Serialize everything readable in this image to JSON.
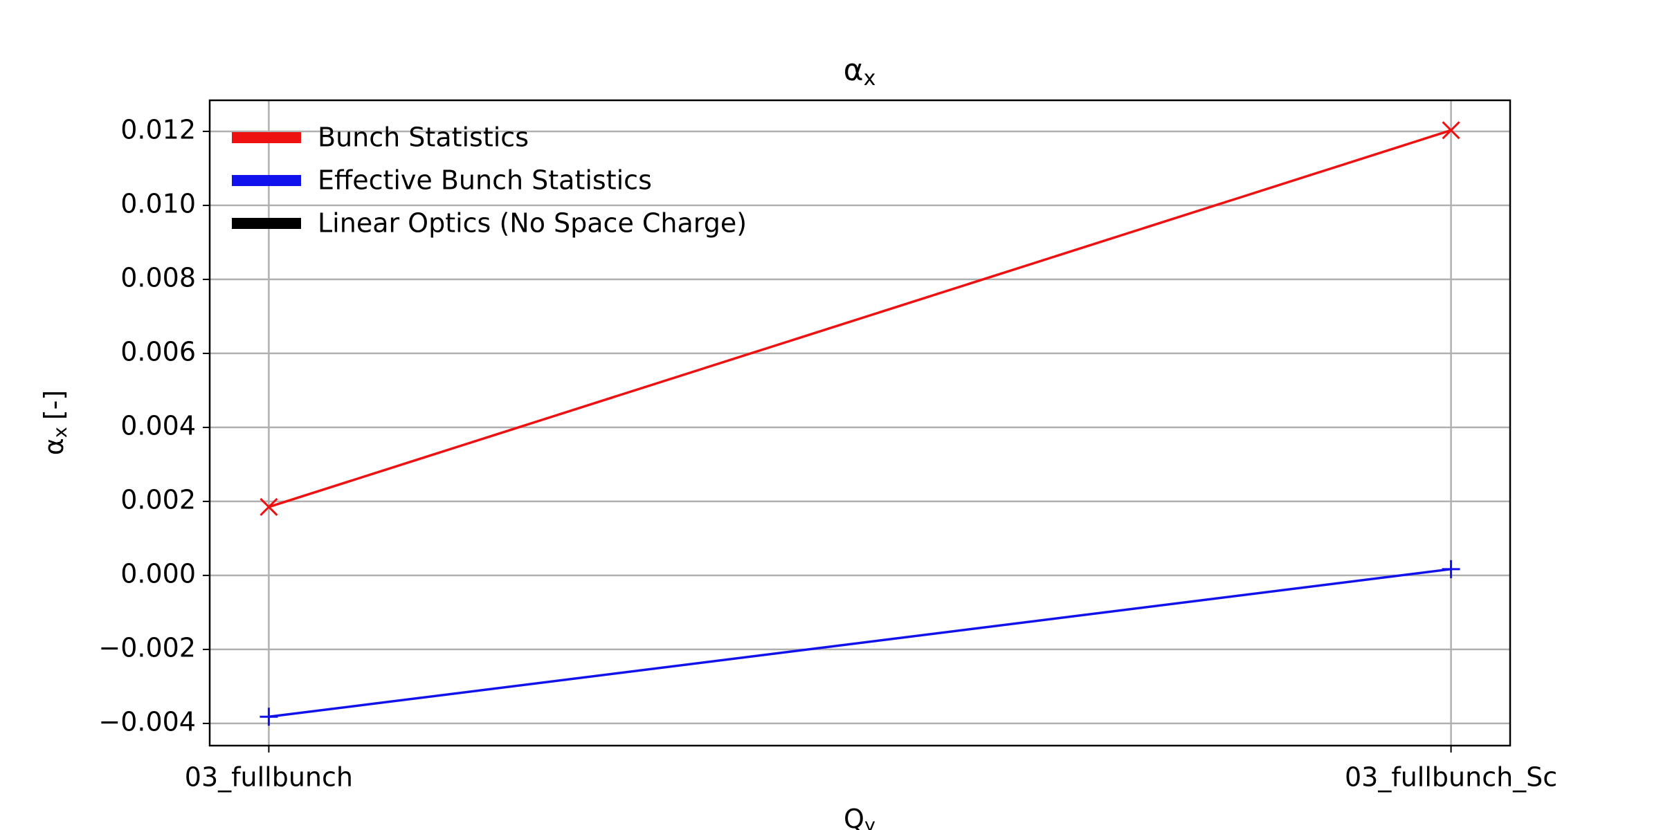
{
  "chart_data": {
    "type": "line",
    "title": {
      "symbol": "α",
      "subscript": "x"
    },
    "xlabel": {
      "symbol": "Q",
      "subscript": "y"
    },
    "ylabel": {
      "symbol": "α",
      "subscript": "x",
      "unit": "[-]"
    },
    "categories": [
      "03_fullbunch",
      "03_fullbunch_Sc"
    ],
    "series": [
      {
        "name": "Bunch Statistics",
        "color": "#ee1111",
        "marker": "x",
        "values": [
          0.00185,
          0.01203
        ]
      },
      {
        "name": "Effective Bunch Statistics",
        "color": "#1111ee",
        "marker": "+",
        "values": [
          -0.00382,
          0.00017
        ]
      },
      {
        "name": "Linear Optics (No Space Charge)",
        "color": "#000000",
        "marker": "none",
        "values": [
          null,
          null
        ]
      }
    ],
    "ylim": [
      -0.0046,
      0.01284
    ],
    "yticks": [
      {
        "value": -0.004,
        "label": "−0.004"
      },
      {
        "value": -0.002,
        "label": "−0.002"
      },
      {
        "value": 0,
        "label": "0.000"
      },
      {
        "value": 0.002,
        "label": "0.002"
      },
      {
        "value": 0.004,
        "label": "0.004"
      },
      {
        "value": 0.006,
        "label": "0.006"
      },
      {
        "value": 0.008,
        "label": "0.008"
      },
      {
        "value": 0.01,
        "label": "0.010"
      },
      {
        "value": 0.012,
        "label": "0.012"
      }
    ],
    "grid": true,
    "legend": "upper left"
  }
}
